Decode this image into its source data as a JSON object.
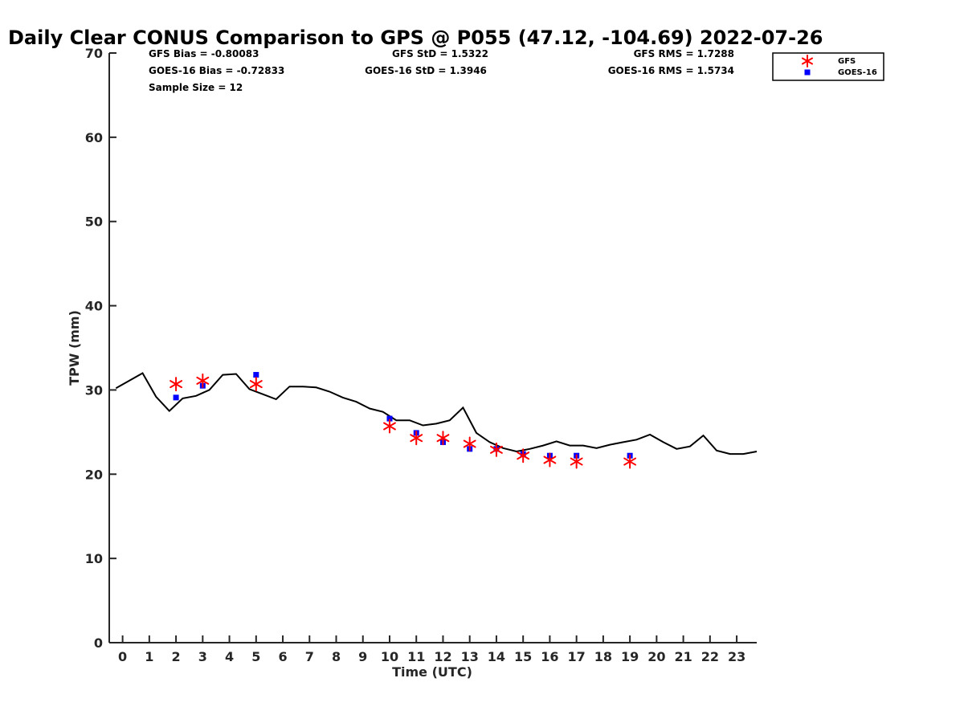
{
  "chart_data": {
    "type": "scatter",
    "title": "Daily Clear CONUS Comparison to GPS @ P055 (47.12, -104.69) 2022-07-26",
    "xlabel": "Time (UTC)",
    "ylabel": "TPW (mm)",
    "xlim": [
      -0.5,
      23.75
    ],
    "ylim": [
      0,
      70
    ],
    "x_ticks": [
      0,
      1,
      2,
      3,
      4,
      5,
      6,
      7,
      8,
      9,
      10,
      11,
      12,
      13,
      14,
      15,
      16,
      17,
      18,
      19,
      20,
      21,
      22,
      23
    ],
    "y_ticks": [
      0,
      10,
      20,
      30,
      40,
      50,
      60,
      70
    ],
    "grid": false,
    "legend_position": "top-right",
    "stats": [
      {
        "text": "GFS Bias = -0.80083"
      },
      {
        "text": "GFS StD = 1.5322"
      },
      {
        "text": "GFS RMS = 1.7288"
      },
      {
        "text": "GOES-16 Bias = -0.72833"
      },
      {
        "text": "GOES-16 StD = 1.3946"
      },
      {
        "text": "GOES-16 RMS = 1.5734"
      },
      {
        "text": "Sample Size = 12"
      }
    ],
    "series": [
      {
        "kind": "line",
        "color": "#000000",
        "x": [
          -0.25,
          0.25,
          0.75,
          1.25,
          1.75,
          2.25,
          2.75,
          3.25,
          3.75,
          4.25,
          4.75,
          5.25,
          5.75,
          6.25,
          6.75,
          7.25,
          7.75,
          8.25,
          8.75,
          9.25,
          9.75,
          10.25,
          10.75,
          11.25,
          11.75,
          12.25,
          12.75,
          13.25,
          13.75,
          14.25,
          14.75,
          15.25,
          15.75,
          16.25,
          16.75,
          17.25,
          17.75,
          18.25,
          18.75,
          19.25,
          19.75,
          20.25,
          20.75,
          21.25,
          21.75,
          22.25,
          22.75,
          23.25,
          23.75
        ],
        "y": [
          30.2,
          31.1,
          32.0,
          29.2,
          27.5,
          29.0,
          29.3,
          30.0,
          31.8,
          31.9,
          30.1,
          29.5,
          28.9,
          30.4,
          30.4,
          30.3,
          29.8,
          29.1,
          28.6,
          27.8,
          27.4,
          26.4,
          26.4,
          25.8,
          26.0,
          26.4,
          27.9,
          24.9,
          23.8,
          23.1,
          22.7,
          23.0,
          23.4,
          23.9,
          23.4,
          23.4,
          23.1,
          23.5,
          23.8,
          24.1,
          24.7,
          23.8,
          23.0,
          23.3,
          24.6,
          22.8,
          22.4,
          22.4,
          22.7
        ]
      },
      {
        "name": "GFS",
        "kind": "asterisk",
        "color": "#ff0000",
        "x": [
          2,
          3,
          5,
          10,
          11,
          12,
          13,
          14,
          15,
          16,
          17,
          19
        ],
        "y": [
          30.7,
          31.1,
          30.7,
          25.7,
          24.3,
          24.3,
          23.6,
          22.9,
          22.2,
          21.7,
          21.5,
          21.5
        ]
      },
      {
        "name": "GOES-16",
        "kind": "square",
        "color": "#0000ff",
        "x": [
          2,
          3,
          5,
          10,
          11,
          12,
          13,
          14,
          15,
          16,
          17,
          19
        ],
        "y": [
          29.1,
          30.5,
          31.8,
          26.6,
          24.9,
          23.8,
          23.0,
          23.0,
          22.4,
          22.2,
          22.2,
          22.2
        ]
      }
    ]
  }
}
